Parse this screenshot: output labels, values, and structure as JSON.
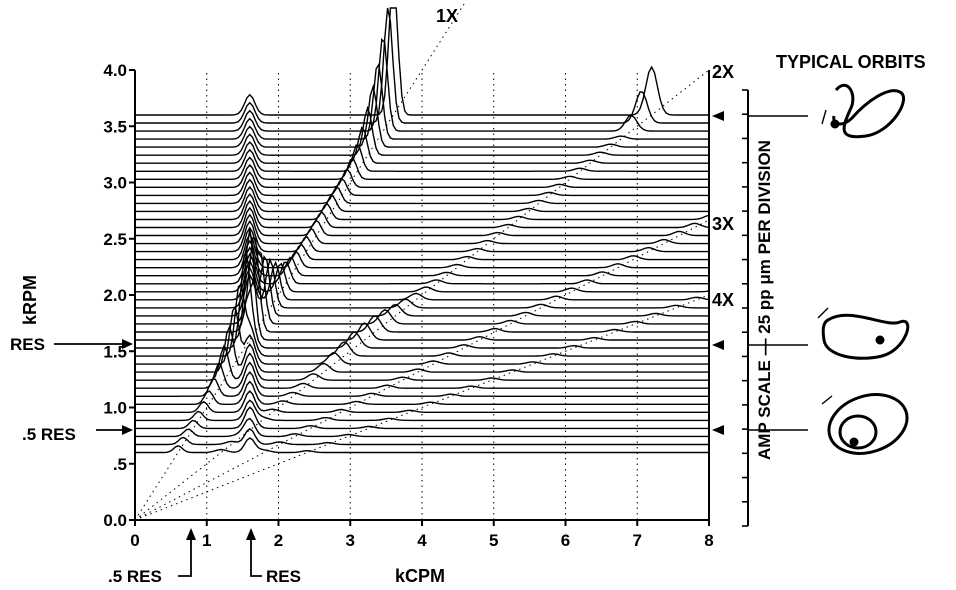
{
  "chart_data": {
    "type": "line",
    "subtype": "waterfall cascade spectrum",
    "xlabel": "kCPM",
    "ylabel": "kRPM",
    "xlim": [
      0,
      8
    ],
    "ylim": [
      0,
      4
    ],
    "xticks": [
      "0",
      "1",
      "2",
      "3",
      "4",
      "5",
      "6",
      "7",
      "8"
    ],
    "yticks": [
      "0.0",
      ".5",
      "1.0",
      "1.5",
      "2.0",
      "2.5",
      "3.0",
      "3.5",
      "4.0"
    ],
    "grid": true,
    "speed_range_krpm": [
      0.6,
      3.6
    ],
    "spectrum_count": 43,
    "order_lines": [
      {
        "label": "1X",
        "order": 1
      },
      {
        "label": "2X",
        "order": 2
      },
      {
        "label": "3X",
        "order": 3
      },
      {
        "label": "4X",
        "order": 4
      }
    ],
    "resonance": {
      "label": "RES",
      "krpm": 1.6,
      "kcpm": 1.6
    },
    "half_resonance": {
      "label": ".5 RES",
      "krpm": 0.8,
      "kcpm": 0.8
    },
    "amp_scale_label": "AMP SCALE — 25 pp μm PER DIVISION",
    "typical_orbits_label": "TYPICAL ORBITS",
    "orbit_speeds_krpm": [
      3.6,
      1.55,
      0.8
    ],
    "peak_at_7kcpm_krpm": 3.6
  }
}
